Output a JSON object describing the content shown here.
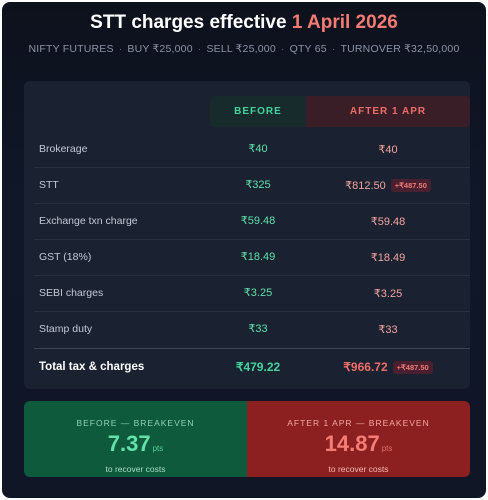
{
  "title": {
    "prefix": "STT charges effective",
    "accent": "1 April 2026"
  },
  "subline": [
    "NIFTY FUTURES",
    "BUY ₹25,000",
    "SELL ₹25,000",
    "QTY 65",
    "TURNOVER ₹32,50,000"
  ],
  "columns": {
    "before": "BEFORE",
    "after": "AFTER 1 APR"
  },
  "rows": [
    {
      "label": "Brokerage",
      "before": "₹40",
      "after": "₹40",
      "badge": ""
    },
    {
      "label": "STT",
      "before": "₹325",
      "after": "₹812.50",
      "badge": "+₹487.50"
    },
    {
      "label": "Exchange txn charge",
      "before": "₹59.48",
      "after": "₹59.48",
      "badge": ""
    },
    {
      "label": "GST (18%)",
      "before": "₹18.49",
      "after": "₹18.49",
      "badge": ""
    },
    {
      "label": "SEBI charges",
      "before": "₹3.25",
      "after": "₹3.25",
      "badge": ""
    },
    {
      "label": "Stamp duty",
      "before": "₹33",
      "after": "₹33",
      "badge": ""
    }
  ],
  "total": {
    "label": "Total tax & charges",
    "before": "₹479.22",
    "after": "₹966.72",
    "badge": "+₹487.50"
  },
  "breakeven": {
    "before": {
      "caption": "BEFORE — BREAKEVEN",
      "value": "7.37",
      "unit": "pts",
      "sub": "to recover costs"
    },
    "after": {
      "caption": "AFTER 1 APR — BREAKEVEN",
      "value": "14.87",
      "unit": "pts",
      "sub": "to recover costs"
    }
  },
  "colors": {
    "green": "#43d39b",
    "red": "#f06d66",
    "background": "#111729"
  }
}
